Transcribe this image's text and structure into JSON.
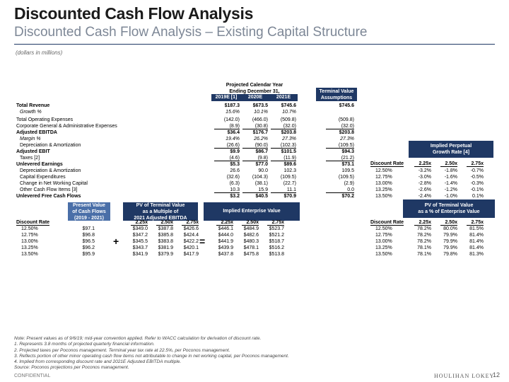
{
  "header": {
    "title": "Discounted Cash Flow Analysis",
    "subtitle": "Discounted Cash Flow Analysis – Existing Capital Structure",
    "units": "(dollars in millions)"
  },
  "projections": {
    "heading_line1": "Projected Calendar Year",
    "heading_line2": "Ending December 31,",
    "columns": [
      "2019E [1]",
      "2020E",
      "2021E"
    ],
    "tv_heading_line1": "Terminal Value",
    "tv_heading_line2": "Assumptions",
    "rows": [
      {
        "label": "Total Revenue",
        "values": [
          "$187.3",
          "$673.5",
          "$745.6"
        ],
        "tv": "$745.6",
        "style": "bold"
      },
      {
        "label": "Growth %",
        "values": [
          "15.6%",
          "10.1%",
          "10.7%"
        ],
        "tv": "",
        "style": "italic-indent"
      },
      {
        "label": "Total Operating Expenses",
        "values": [
          "(142.0)",
          "(466.0)",
          "(509.8)"
        ],
        "tv": "(509.8)",
        "style": "normal"
      },
      {
        "label": "Corporate General & Administrative Expenses",
        "values": [
          "(8.9)",
          "(30.8)",
          "(32.0)"
        ],
        "tv": "(32.0)",
        "style": "underline"
      },
      {
        "label": "Adjusted EBITDA",
        "values": [
          "$36.4",
          "$176.7",
          "$203.8"
        ],
        "tv": "$203.8",
        "style": "bold"
      },
      {
        "label": "Margin %",
        "values": [
          "19.4%",
          "26.2%",
          "27.3%"
        ],
        "tv": "27.3%",
        "style": "italic-indent"
      },
      {
        "label": "Depreciation & Amortization",
        "values": [
          "(26.6)",
          "(90.0)",
          "(102.3)"
        ],
        "tv": "(109.5)",
        "style": "indent-underline"
      },
      {
        "label": "Adjusted EBIT",
        "values": [
          "$9.9",
          "$86.7",
          "$101.5"
        ],
        "tv": "$94.3",
        "style": "bold"
      },
      {
        "label": "Taxes [2]",
        "values": [
          "(4.6)",
          "(9.8)",
          "(11.9)"
        ],
        "tv": "(21.2)",
        "style": "indent-underline"
      },
      {
        "label": "Unlevered Earnings",
        "values": [
          "$5.3",
          "$77.0",
          "$89.6"
        ],
        "tv": "$73.1",
        "style": "bold"
      },
      {
        "label": "Depreciation & Amortization",
        "values": [
          "26.6",
          "90.0",
          "102.3"
        ],
        "tv": "109.5",
        "style": "indent"
      },
      {
        "label": "Capital Expenditures",
        "values": [
          "(32.6)",
          "(104.3)",
          "(109.5)"
        ],
        "tv": "(109.5)",
        "style": "indent"
      },
      {
        "label": "Change in Net Working Capital",
        "values": [
          "(6.3)",
          "(38.1)",
          "(22.7)"
        ],
        "tv": "(2.9)",
        "style": "indent"
      },
      {
        "label": "Other Cash Flow Items [3]",
        "values": [
          "10.3",
          "15.9",
          "11.1"
        ],
        "tv": "0.0",
        "style": "indent-underline"
      },
      {
        "label": "Unlevered Free Cash Flows",
        "values": [
          "$3.2",
          "$40.5",
          "$70.9"
        ],
        "tv": "$70.2",
        "style": "bold"
      }
    ]
  },
  "perpetual": {
    "title_line1": "Implied Perpetual",
    "title_line2": "Growth Rate [4]",
    "rate_label": "Discount Rate",
    "columns": [
      "2.25x",
      "2.50x",
      "2.75x"
    ],
    "rows": [
      {
        "rate": "12.50%",
        "values": [
          "-3.2%",
          "-1.8%",
          "-0.7%"
        ]
      },
      {
        "rate": "12.75%",
        "values": [
          "-3.0%",
          "-1.6%",
          "-0.5%"
        ]
      },
      {
        "rate": "13.00%",
        "values": [
          "-2.8%",
          "-1.4%",
          "-0.3%"
        ]
      },
      {
        "rate": "13.25%",
        "values": [
          "-2.6%",
          "-1.2%",
          "-0.1%"
        ]
      },
      {
        "rate": "13.50%",
        "values": [
          "-2.4%",
          "-1.0%",
          "0.1%"
        ]
      }
    ]
  },
  "valuation": {
    "pv_cf_title": [
      "Present Value",
      "of Cash Flows",
      "(2019 - 2021)"
    ],
    "pv_tv_title": [
      "PV of Terminal Value",
      "as a Multiple of",
      "2021 Adjusted EBITDA"
    ],
    "ev_title": "Implied Enterprise Value",
    "pct_title": [
      "PV of Terminal Value",
      "as a % of Enterprise Value"
    ],
    "rate_label": "Discount Rate",
    "multiples": [
      "2.25x",
      "2.50x",
      "2.75x"
    ],
    "plus": "+",
    "equals": "=",
    "rows": [
      {
        "rate": "12.50%",
        "pv_cf": "$97.1",
        "pv_tv": [
          "$349.0",
          "$387.8",
          "$426.6"
        ],
        "ev": [
          "$446.1",
          "$484.9",
          "$523.7"
        ],
        "pct": [
          "78.2%",
          "80.0%",
          "81.5%"
        ]
      },
      {
        "rate": "12.75%",
        "pv_cf": "$96.8",
        "pv_tv": [
          "$347.2",
          "$385.8",
          "$424.4"
        ],
        "ev": [
          "$444.0",
          "$482.6",
          "$521.2"
        ],
        "pct": [
          "78.2%",
          "79.9%",
          "81.4%"
        ]
      },
      {
        "rate": "13.00%",
        "pv_cf": "$96.5",
        "pv_tv": [
          "$345.5",
          "$383.8",
          "$422.2"
        ],
        "ev": [
          "$441.9",
          "$480.3",
          "$518.7"
        ],
        "pct": [
          "78.2%",
          "79.9%",
          "81.4%"
        ]
      },
      {
        "rate": "13.25%",
        "pv_cf": "$96.2",
        "pv_tv": [
          "$343.7",
          "$381.9",
          "$420.1"
        ],
        "ev": [
          "$439.9",
          "$478.1",
          "$516.2"
        ],
        "pct": [
          "78.1%",
          "79.9%",
          "81.4%"
        ]
      },
      {
        "rate": "13.50%",
        "pv_cf": "$95.9",
        "pv_tv": [
          "$341.9",
          "$379.9",
          "$417.9"
        ],
        "ev": [
          "$437.8",
          "$475.8",
          "$513.8"
        ],
        "pct": [
          "78.1%",
          "79.8%",
          "81.3%"
        ]
      }
    ]
  },
  "footer": {
    "notes": [
      "Note: Present values as of 9/6/19; mid-year convention applied. Refer to WACC calculation for derivation of discount rate.",
      "1.  Represents 3.8 months of projected quarterly financial information.",
      "2.  Projected taxes per Poconos management. Terminal year tax rate at 22.5%, per Poconos management.",
      "3.  Reflects portion of other minor operating cash flow items not attributable to change in net working capital, per Poconos management.",
      "4.  Implied from corresponding discount rate and 2021E Adjusted EBITDA multiple.",
      "Source: Poconos projections per Poconos management."
    ],
    "confidential": "CONFIDENTIAL",
    "logo": "HOULIHAN LOKEY",
    "page": "12"
  },
  "colors": {
    "navy": "#1f3864",
    "blue": "#4a6fa8",
    "subtitle": "#7d8796"
  }
}
